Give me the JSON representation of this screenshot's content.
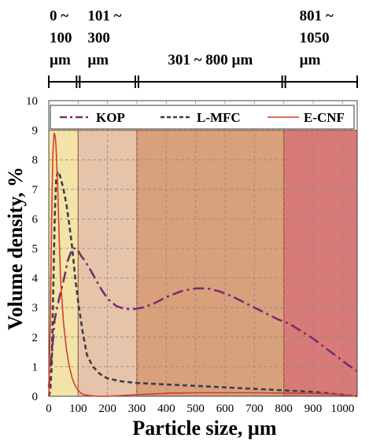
{
  "chart_data": {
    "type": "line",
    "xlabel": "Particle size, µm",
    "ylabel": "Volume density, %",
    "xlim": [
      0,
      1050
    ],
    "ylim": [
      0,
      10
    ],
    "xticks": [
      0,
      100,
      200,
      300,
      400,
      500,
      600,
      700,
      800,
      900,
      1000
    ],
    "yticks": [
      0,
      1,
      2,
      3,
      4,
      5,
      6,
      7,
      8,
      9,
      10
    ],
    "grid": "dashed",
    "legend": "top",
    "size_ranges": [
      {
        "label": [
          "0 ~",
          "100",
          "µm"
        ],
        "from": 0,
        "to": 100,
        "color": "#f3e3a8"
      },
      {
        "label": [
          "101 ~",
          "300",
          "µm"
        ],
        "from": 100,
        "to": 300,
        "color": "#e6c4a9"
      },
      {
        "label": [
          "301 ~ 800 µm"
        ],
        "from": 300,
        "to": 800,
        "color": "#d9a07c"
      },
      {
        "label": [
          "801 ~",
          "1050",
          "µm"
        ],
        "from": 800,
        "to": 1050,
        "color": "#d77a78"
      }
    ],
    "series": [
      {
        "name": "KOP",
        "color": "#7b2c6b",
        "style": "dash-dot",
        "x": [
          0,
          10,
          20,
          35,
          50,
          65,
          80,
          95,
          110,
          125,
          140,
          160,
          180,
          200,
          230,
          260,
          290,
          320,
          360,
          400,
          450,
          500,
          540,
          580,
          620,
          660,
          700,
          740,
          780,
          820,
          860,
          900,
          940,
          980,
          1020,
          1050
        ],
        "y": [
          0.3,
          1.4,
          2.6,
          3.3,
          3.9,
          4.6,
          5.0,
          5.0,
          4.75,
          4.55,
          4.3,
          3.95,
          3.6,
          3.3,
          3.05,
          2.95,
          2.95,
          3.0,
          3.15,
          3.35,
          3.55,
          3.65,
          3.65,
          3.55,
          3.4,
          3.2,
          3.0,
          2.8,
          2.6,
          2.45,
          2.2,
          1.95,
          1.65,
          1.35,
          1.05,
          0.85
        ]
      },
      {
        "name": "L-MFC",
        "color": "#3a3f4a",
        "style": "dashed",
        "x": [
          0,
          5,
          10,
          15,
          20,
          25,
          30,
          35,
          40,
          45,
          50,
          60,
          70,
          80,
          90,
          100,
          115,
          130,
          150,
          175,
          200,
          250,
          300,
          400,
          500,
          600,
          700,
          800,
          900,
          1000,
          1050
        ],
        "y": [
          0.0,
          0.2,
          1.0,
          3.5,
          6.0,
          7.3,
          7.6,
          7.55,
          7.4,
          7.2,
          7.0,
          6.5,
          5.8,
          5.0,
          4.0,
          3.2,
          2.2,
          1.4,
          1.0,
          0.75,
          0.6,
          0.5,
          0.45,
          0.4,
          0.35,
          0.3,
          0.25,
          0.2,
          0.15,
          0.05,
          0.0
        ]
      },
      {
        "name": "E-CNF",
        "color": "#d0402a",
        "style": "solid",
        "x": [
          0,
          5,
          10,
          14,
          18,
          22,
          25,
          30,
          35,
          40,
          50,
          60,
          70,
          80,
          90,
          100,
          110,
          120,
          140,
          170,
          200,
          300,
          400,
          500,
          600,
          700,
          800,
          900,
          1000,
          1050
        ],
        "y": [
          0.0,
          2.5,
          6.0,
          8.2,
          8.9,
          8.8,
          8.4,
          7.2,
          5.5,
          4.0,
          2.5,
          1.6,
          1.0,
          0.6,
          0.35,
          0.2,
          0.1,
          0.05,
          0.02,
          0.0,
          0.0,
          0.05,
          0.1,
          0.12,
          0.12,
          0.12,
          0.11,
          0.1,
          0.05,
          0.0
        ]
      }
    ]
  }
}
